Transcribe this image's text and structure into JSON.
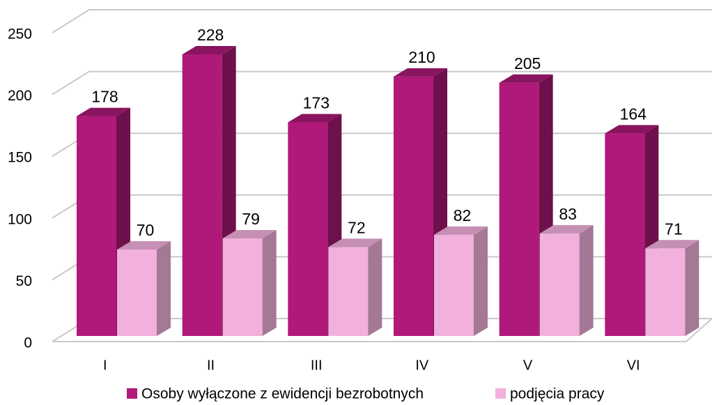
{
  "chart_data": {
    "type": "bar3d",
    "categories": [
      "I",
      "II",
      "III",
      "IV",
      "V",
      "VI"
    ],
    "series": [
      {
        "name": "Osoby wyłączone z ewidencji bezrobotnych",
        "color": "#b0197a",
        "values": [
          178,
          228,
          173,
          210,
          205,
          164
        ]
      },
      {
        "name": "podjęcia pracy",
        "color": "#f2b0dc",
        "values": [
          70,
          79,
          72,
          82,
          83,
          71
        ]
      }
    ],
    "ylim": [
      0,
      250
    ],
    "yticks": [
      0,
      50,
      100,
      150,
      200,
      250
    ],
    "grid": true,
    "legend": "bottom"
  }
}
